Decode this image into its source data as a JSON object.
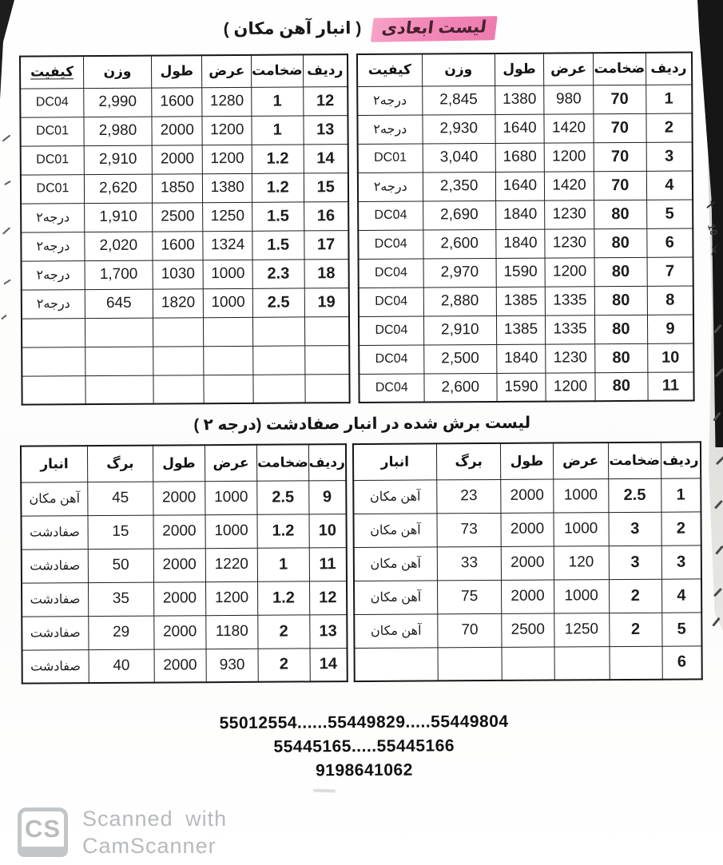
{
  "page": {
    "title_highlight": "لیست ابعادی",
    "title_rest": "( انبار آهن مکان )",
    "section2_title": "لیست برش شده در انبار صفادشت (درجه ۲ )",
    "highlight_color": "#f287b7",
    "phones": {
      "line1": "55012554......55449829.....55449804",
      "line2": "55445165.....55445166",
      "line3": "9198641062"
    },
    "watermark": {
      "logo": "CS",
      "line1": "Scanned with",
      "line2": "CamScanner",
      "color": "#b7babd"
    },
    "scan_artifacts": {
      "handwritten_number": "10",
      "handwritten_x": "✗"
    }
  },
  "table1": {
    "headers": [
      "ردیف",
      "ضخامت",
      "عرض",
      "طول",
      "وزن",
      "کیفیت"
    ],
    "right_rows": [
      [
        "1",
        "70",
        "980",
        "1380",
        "2,845",
        "درجه۲"
      ],
      [
        "2",
        "70",
        "1420",
        "1640",
        "2,930",
        "درجه۲"
      ],
      [
        "3",
        "70",
        "1200",
        "1680",
        "3,040",
        "DC01"
      ],
      [
        "4",
        "70",
        "1420",
        "1640",
        "2,350",
        "درجه۲"
      ],
      [
        "5",
        "80",
        "1230",
        "1840",
        "2,690",
        "DC04"
      ],
      [
        "6",
        "80",
        "1230",
        "1840",
        "2,600",
        "DC04"
      ],
      [
        "7",
        "80",
        "1200",
        "1590",
        "2,970",
        "DC04"
      ],
      [
        "8",
        "80",
        "1335",
        "1385",
        "2,880",
        "DC04"
      ],
      [
        "9",
        "80",
        "1335",
        "1385",
        "2,910",
        "DC04"
      ],
      [
        "10",
        "80",
        "1230",
        "1840",
        "2,500",
        "DC04"
      ],
      [
        "11",
        "80",
        "1200",
        "1590",
        "2,600",
        "DC04"
      ]
    ],
    "left_rows": [
      [
        "12",
        "1",
        "1280",
        "1600",
        "2,990",
        "DC04"
      ],
      [
        "13",
        "1",
        "1200",
        "2000",
        "2,980",
        "DC01"
      ],
      [
        "14",
        "1.2",
        "1200",
        "2000",
        "2,910",
        "DC01"
      ],
      [
        "15",
        "1.2",
        "1380",
        "1850",
        "2,620",
        "DC01"
      ],
      [
        "16",
        "1.5",
        "1250",
        "2500",
        "1,910",
        "درجه۲"
      ],
      [
        "17",
        "1.5",
        "1324",
        "1600",
        "2,020",
        "درجه۲"
      ],
      [
        "18",
        "2.3",
        "1000",
        "1030",
        "1,700",
        "درجه۲"
      ],
      [
        "19",
        "2.5",
        "1000",
        "1820",
        "645",
        "درجه۲"
      ],
      [
        "",
        "",
        "",
        "",
        "",
        ""
      ],
      [
        "",
        "",
        "",
        "",
        "",
        ""
      ],
      [
        "",
        "",
        "",
        "",
        "",
        ""
      ]
    ]
  },
  "table2": {
    "headers": [
      "ردیف",
      "ضخامت",
      "عرض",
      "طول",
      "برگ",
      "انبار"
    ],
    "right_rows": [
      [
        "1",
        "2.5",
        "1000",
        "2000",
        "23",
        "آهن مکان"
      ],
      [
        "2",
        "3",
        "1000",
        "2000",
        "73",
        "آهن مکان"
      ],
      [
        "3",
        "3",
        "120",
        "2000",
        "33",
        "آهن مکان"
      ],
      [
        "4",
        "2",
        "1000",
        "2000",
        "75",
        "آهن مکان"
      ],
      [
        "5",
        "2",
        "1250",
        "2500",
        "70",
        "آهن مکان"
      ],
      [
        "6",
        "",
        "",
        "",
        "",
        ""
      ]
    ],
    "left_rows": [
      [
        "9",
        "2.5",
        "1000",
        "2000",
        "45",
        "آهن مکان"
      ],
      [
        "10",
        "1.2",
        "1000",
        "2000",
        "15",
        "صفادشت"
      ],
      [
        "11",
        "1",
        "1220",
        "2000",
        "50",
        "صفادشت"
      ],
      [
        "12",
        "1.2",
        "1200",
        "2000",
        "35",
        "صفادشت"
      ],
      [
        "13",
        "2",
        "1180",
        "2000",
        "29",
        "صفادشت"
      ],
      [
        "14",
        "2",
        "930",
        "2000",
        "40",
        "صفادشت"
      ]
    ]
  }
}
